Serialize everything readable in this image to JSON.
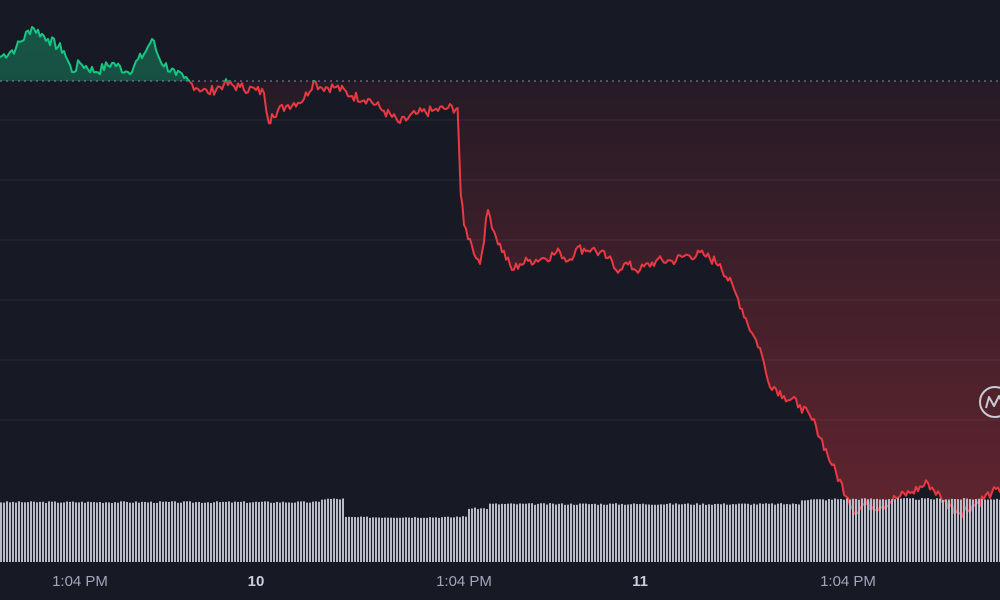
{
  "chart_data": {
    "type": "line",
    "baseline_value": 97.3,
    "colors": {
      "above_baseline": "#16c784",
      "below_baseline": "#ea3943",
      "background": "#171924",
      "grid": "#262a38",
      "volume": "#b9bcc6"
    },
    "x_ticks": [
      {
        "x": 5.0,
        "label": "1:04 PM",
        "kind": "time"
      },
      {
        "x": 16.0,
        "label": "10",
        "kind": "day"
      },
      {
        "x": 29.0,
        "label": "1:04 PM",
        "kind": "time"
      },
      {
        "x": 40.0,
        "label": "11",
        "kind": "day"
      },
      {
        "x": 53.0,
        "label": "1:04 PM",
        "kind": "time"
      }
    ],
    "xlim": [
      0,
      62.5
    ],
    "ylim": [
      80,
      100
    ],
    "y_gridlines": [
      96,
      94,
      92,
      90,
      88,
      86
    ],
    "grid": true,
    "price_series": {
      "x": [
        0,
        1,
        2,
        3,
        4,
        4.5,
        5,
        6,
        7,
        8,
        9,
        9.5,
        10,
        11,
        11.5,
        12,
        13,
        14,
        15,
        16,
        16.5,
        16.8,
        17,
        18,
        19,
        19.6,
        20,
        21,
        22,
        23,
        24,
        25,
        26,
        27,
        28,
        28.6,
        28.8,
        29,
        29.5,
        30,
        30.5,
        31,
        32,
        32.5,
        33,
        34,
        35,
        35.5,
        36,
        37,
        38,
        38.5,
        39,
        40,
        41,
        42,
        43,
        44,
        45,
        46,
        47,
        47.5,
        48,
        49,
        50,
        51,
        52,
        53,
        53.5,
        54,
        55,
        56,
        57,
        58,
        59,
        60,
        61,
        62,
        62.5
      ],
      "y": [
        98.1,
        98.4,
        99.1,
        98.7,
        98.3,
        97.6,
        97.9,
        97.6,
        97.9,
        97.6,
        98.2,
        98.7,
        98.0,
        97.5,
        97.4,
        97.2,
        96.9,
        97.2,
        97.1,
        97.0,
        96.9,
        95.9,
        96.2,
        96.5,
        96.7,
        97.3,
        97.1,
        97.1,
        96.8,
        96.7,
        96.3,
        95.9,
        96.2,
        96.3,
        96.4,
        96.4,
        93.5,
        92.5,
        91.8,
        91.2,
        93.0,
        92.1,
        91.0,
        91.2,
        91.3,
        91.4,
        91.6,
        91.3,
        91.7,
        91.7,
        91.4,
        91.0,
        91.2,
        91.0,
        91.3,
        91.3,
        91.5,
        91.5,
        91.2,
        90.2,
        88.9,
        88.4,
        87.3,
        86.8,
        86.5,
        85.8,
        84.5,
        83.4,
        82.9,
        83.2,
        83.1,
        83.4,
        83.6,
        83.9,
        83.3,
        82.9,
        83.2,
        83.6,
        83.6
      ]
    },
    "volume": {
      "levels": [
        {
          "from": 0,
          "to": 20,
          "value": 0.95
        },
        {
          "from": 20,
          "to": 21.4,
          "value": 1.0
        },
        {
          "from": 21.4,
          "to": 28.4,
          "value": 0.71
        },
        {
          "from": 28.4,
          "to": 29.2,
          "value": 0.72
        },
        {
          "from": 29.2,
          "to": 30.5,
          "value": 0.85
        },
        {
          "from": 30.5,
          "to": 50,
          "value": 0.92
        },
        {
          "from": 50,
          "to": 52,
          "value": 0.99
        },
        {
          "from": 52,
          "to": 62.5,
          "value": 1.0
        }
      ]
    },
    "title": "",
    "xlabel": "",
    "ylabel": ""
  },
  "watermark_icon": "coinmarketcap-logo-icon"
}
